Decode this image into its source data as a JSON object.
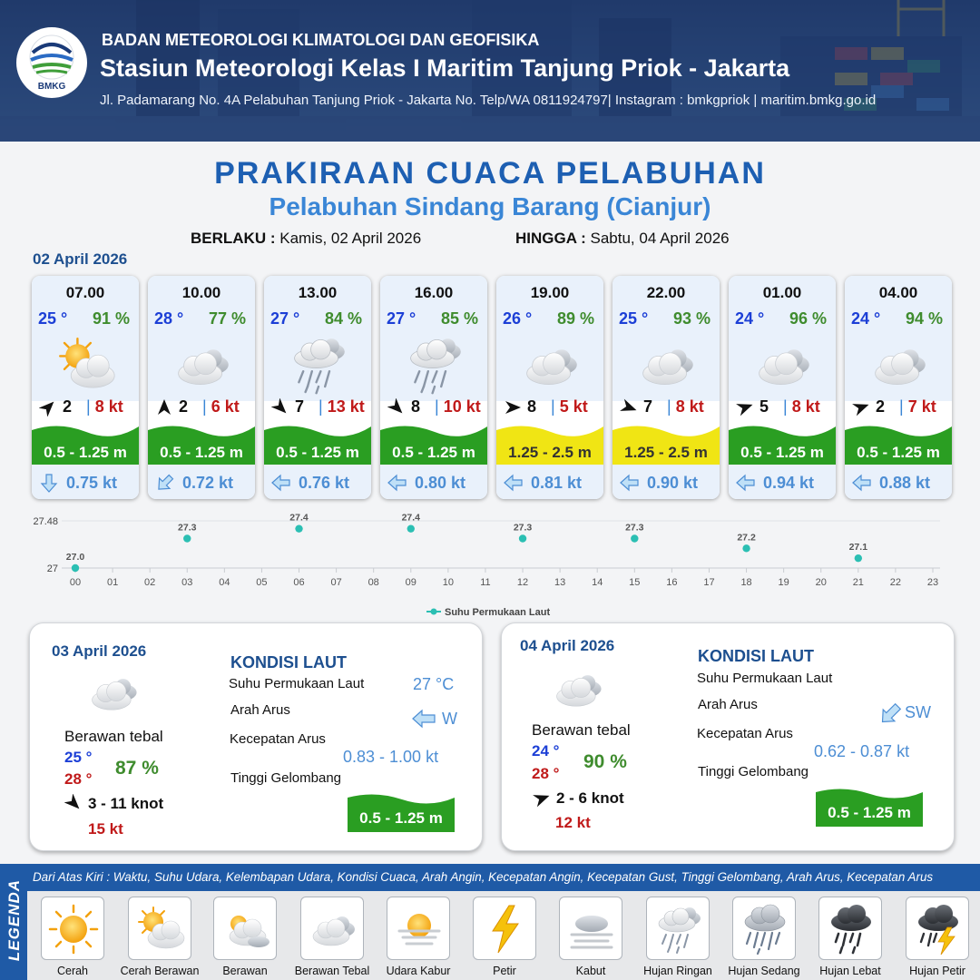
{
  "header": {
    "logo_text": "BMKG",
    "agency": "BADAN METEOROLOGI KLIMATOLOGI DAN GEOFISIKA",
    "station": "Stasiun Meteorologi Kelas I Maritim Tanjung Priok - Jakarta",
    "address": "Jl. Padamarang No. 4A Pelabuhan Tanjung Priok - Jakarta No. Telp/WA 0811924797| Instagram : bmkgpriok | maritim.bmkg.go.id"
  },
  "title": "PRAKIRAAN CUACA PELABUHAN",
  "subtitle": "Pelabuhan Sindang Barang (Cianjur)",
  "validity": {
    "from_label": "BERLAKU :",
    "from_value": "Kamis, 02 April 2026",
    "to_label": "HINGGA :",
    "to_value": "Sabtu, 04 April 2026"
  },
  "forecast_date": "02 April 2026",
  "forecasts": [
    {
      "time": "07.00",
      "temp": "25 °",
      "hum": "91 %",
      "weather": "cerah-berawan-icon",
      "wind_speed": "2",
      "wind_gust": "8 kt",
      "wind_dir_deg": 45,
      "wave": "0.5 - 1.25 m",
      "wave_color": "#2a9e22",
      "current_speed": "0.75 kt",
      "current_dir_deg": 0
    },
    {
      "time": "10.00",
      "temp": "28 °",
      "hum": "77 %",
      "weather": "berawan-tebal-icon",
      "wind_speed": "2",
      "wind_gust": "6 kt",
      "wind_dir_deg": 0,
      "wave": "0.5 - 1.25 m",
      "wave_color": "#2a9e22",
      "current_speed": "0.72 kt",
      "current_dir_deg": 45
    },
    {
      "time": "13.00",
      "temp": "27 °",
      "hum": "84 %",
      "weather": "hujan-ringan-icon",
      "wind_speed": "7",
      "wind_gust": "13 kt",
      "wind_dir_deg": 135,
      "wave": "0.5 - 1.25 m",
      "wave_color": "#2a9e22",
      "current_speed": "0.76 kt",
      "current_dir_deg": 90
    },
    {
      "time": "16.00",
      "temp": "27 °",
      "hum": "85 %",
      "weather": "hujan-ringan-icon",
      "wind_speed": "8",
      "wind_gust": "10 kt",
      "wind_dir_deg": 135,
      "wave": "0.5 - 1.25 m",
      "wave_color": "#2a9e22",
      "current_speed": "0.80 kt",
      "current_dir_deg": 90
    },
    {
      "time": "19.00",
      "temp": "26 °",
      "hum": "89 %",
      "weather": "berawan-tebal-icon",
      "wind_speed": "8",
      "wind_gust": "5 kt",
      "wind_dir_deg": 90,
      "wave": "1.25 - 2.5 m",
      "wave_color": "#f0e514",
      "current_speed": "0.81 kt",
      "current_dir_deg": 90
    },
    {
      "time": "22.00",
      "temp": "25 °",
      "hum": "93 %",
      "weather": "berawan-tebal-icon",
      "wind_speed": "7",
      "wind_gust": "8 kt",
      "wind_dir_deg": 110,
      "wave": "1.25 - 2.5 m",
      "wave_color": "#f0e514",
      "current_speed": "0.90 kt",
      "current_dir_deg": 90
    },
    {
      "time": "01.00",
      "temp": "24 °",
      "hum": "96 %",
      "weather": "berawan-tebal-icon",
      "wind_speed": "5",
      "wind_gust": "8 kt",
      "wind_dir_deg": 70,
      "wave": "0.5 - 1.25 m",
      "wave_color": "#2a9e22",
      "current_speed": "0.94 kt",
      "current_dir_deg": 90
    },
    {
      "time": "04.00",
      "temp": "24 °",
      "hum": "94 %",
      "weather": "berawan-tebal-icon",
      "wind_speed": "2",
      "wind_gust": "7 kt",
      "wind_dir_deg": 70,
      "wave": "0.5 - 1.25 m",
      "wave_color": "#2a9e22",
      "current_speed": "0.88 kt",
      "current_dir_deg": 90
    }
  ],
  "chart_data": {
    "type": "scatter",
    "x": [
      0,
      3,
      6,
      9,
      12,
      15,
      18,
      21
    ],
    "values": [
      27.0,
      27.3,
      27.4,
      27.4,
      27.3,
      27.3,
      27.2,
      27.1
    ],
    "value_labels": [
      "27.0",
      "27.3",
      "27.4",
      "27.4",
      "27.3",
      "27.3",
      "27.2",
      "27.1"
    ],
    "x_ticks": [
      "00",
      "01",
      "02",
      "03",
      "04",
      "05",
      "06",
      "07",
      "08",
      "09",
      "10",
      "11",
      "12",
      "13",
      "14",
      "15",
      "16",
      "17",
      "18",
      "19",
      "20",
      "21",
      "22",
      "23"
    ],
    "y_ticks": [
      "27.48",
      "27"
    ],
    "ylim": [
      27,
      27.48
    ],
    "xlim": [
      0,
      23
    ],
    "series_name": "Suhu Permukaan Laut",
    "color": "#2bbfb3",
    "legend_position": "bottom-center"
  },
  "days": [
    {
      "date": "03 April 2026",
      "condition": "Berawan tebal",
      "temp_min": "25 °",
      "temp_max": "28 °",
      "hum": "87 %",
      "wind": "3  - 11 knot",
      "gust": "15 kt",
      "sea_title": "KONDISI LAUT",
      "sst_label": "Suhu Permukaan Laut",
      "sst_value": "27 °C",
      "dir_label": "Arah Arus",
      "dir_value": "W",
      "speed_label": "Kecepatan Arus",
      "speed_value": "0.83  - 1.00 kt",
      "wave_label": "Tinggi Gelombang",
      "wave_value": "0.5 - 1.25 m"
    },
    {
      "date": "04 April 2026",
      "condition": "Berawan tebal",
      "temp_min": "24 °",
      "temp_max": "28 °",
      "hum": "90 %",
      "wind": "2  - 6 knot",
      "gust": "12 kt",
      "sea_title": "KONDISI LAUT",
      "sst_label": "Suhu Permukaan Laut",
      "sst_value": "",
      "dir_label": "Arah Arus",
      "dir_value": "SW",
      "speed_label": "Kecepatan Arus",
      "speed_value": "0.62  - 0.87 kt",
      "wave_label": "Tinggi Gelombang",
      "wave_value": "0.5 - 1.25 m"
    }
  ],
  "legend": {
    "side_label": "LEGENDA",
    "description": "Dari Atas Kiri : Waktu, Suhu Udara, Kelembapan Udara, Kondisi Cuaca, Arah Angin, Kecepatan Angin, Kecepatan Gust, Tinggi Gelombang, Arah Arus, Kecepatan Arus",
    "items": [
      {
        "label": "Cerah",
        "icon": "cerah-icon"
      },
      {
        "label": "Cerah Berawan",
        "icon": "cerah-berawan-icon"
      },
      {
        "label": "Berawan",
        "icon": "berawan-icon"
      },
      {
        "label": "Berawan Tebal",
        "icon": "berawan-tebal-icon"
      },
      {
        "label": "Udara Kabur",
        "icon": "udara-kabur-icon"
      },
      {
        "label": "Petir",
        "icon": "petir-icon"
      },
      {
        "label": "Kabut",
        "icon": "kabut-icon"
      },
      {
        "label": "Hujan Ringan",
        "icon": "hujan-ringan-icon"
      },
      {
        "label": "Hujan Sedang",
        "icon": "hujan-sedang-icon"
      },
      {
        "label": "Hujan Lebat",
        "icon": "hujan-lebat-icon"
      },
      {
        "label": "Hujan Petir",
        "icon": "hujan-petir-icon"
      }
    ]
  }
}
